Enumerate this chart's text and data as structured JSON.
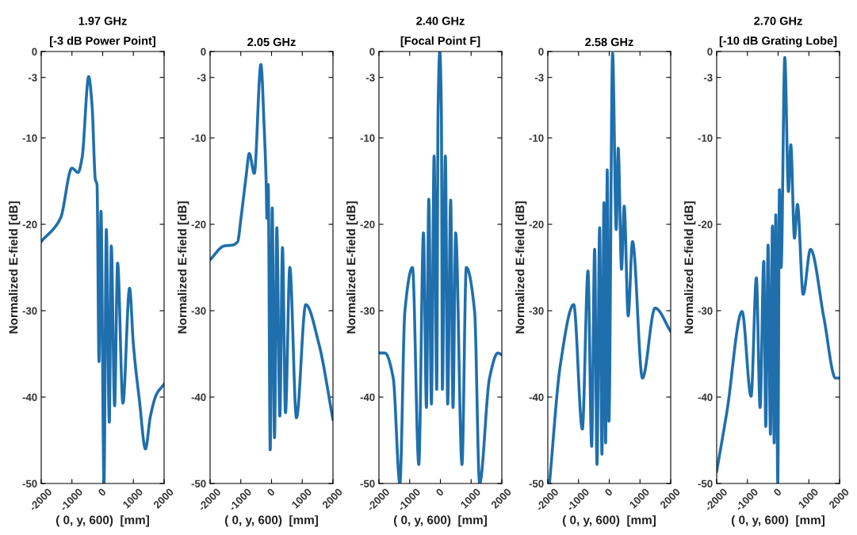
{
  "chart_data": [
    {
      "type": "line",
      "title": "1.97 GHz",
      "subtitle": "[-3 dB Power Point]",
      "xlabel": "( 0, y, 600)  [mm]",
      "ylabel": "Normalized E-field [dB]",
      "xlim": [
        -2000,
        2000
      ],
      "ylim": [
        -50,
        0
      ],
      "xticks": [
        -2000,
        -1000,
        0,
        1000,
        2000
      ],
      "yticks": [
        0,
        -3,
        -10,
        -20,
        -30,
        -40,
        -50
      ],
      "grid": false,
      "legend": false,
      "series": [
        {
          "color": "#1f6fad",
          "x": [
            -2000,
            -1373,
            -1000,
            -800,
            -670,
            -454,
            -346,
            -238,
            -184,
            -119,
            -54,
            43,
            119,
            216,
            281,
            389,
            486,
            659,
            876,
            1000,
            1200,
            1394,
            1550,
            1750,
            2000
          ],
          "values": [
            -22.0,
            -19.3,
            -13.5,
            -14.0,
            -12.3,
            -2.9,
            -6.2,
            -14.8,
            -15.4,
            -35.9,
            -18.5,
            -50,
            -20.6,
            -42.9,
            -22.5,
            -41.0,
            -24.5,
            -40.7,
            -27.4,
            -33.9,
            -40.5,
            -46.0,
            -42.3,
            -39.7,
            -38.5
          ]
        }
      ]
    },
    {
      "type": "line",
      "title": "2.05 GHz",
      "xlabel": "( 0, y, 600)  [mm]",
      "ylabel": "Normalized E-field [dB]",
      "xlim": [
        -2000,
        2000
      ],
      "ylim": [
        -50,
        0
      ],
      "xticks": [
        -2000,
        -1000,
        0,
        1000,
        2000
      ],
      "yticks": [
        0,
        -3,
        -10,
        -20,
        -30,
        -40,
        -50
      ],
      "grid": false,
      "legend": false,
      "series": [
        {
          "color": "#1f6fad",
          "x": [
            -2000,
            -1535,
            -1265,
            -1103,
            -995,
            -833,
            -724,
            -562,
            -346,
            -238,
            -173,
            -151,
            -108,
            -43,
            22,
            97,
            173,
            270,
            357,
            454,
            595,
            811,
            1114,
            1546,
            2000
          ],
          "values": [
            -24.1,
            -22.5,
            -22.4,
            -22.0,
            -19.3,
            -14.6,
            -11.8,
            -14.1,
            -1.5,
            -8.9,
            -15.4,
            -19.3,
            -15.4,
            -46.1,
            -18.1,
            -44.7,
            -20.4,
            -42.2,
            -22.7,
            -41.8,
            -25.0,
            -42.4,
            -29.3,
            -33.9,
            -42.6
          ]
        }
      ]
    },
    {
      "type": "line",
      "title": "2.40 GHz",
      "subtitle": "[Focal Point F]",
      "xlabel": "( 0, y, 600)  [mm]",
      "ylabel": "Normalized E-field [dB]",
      "xlim": [
        -2000,
        2000
      ],
      "ylim": [
        -50,
        0
      ],
      "xticks": [
        -2000,
        -1000,
        0,
        1000,
        2000
      ],
      "yticks": [
        0,
        -3,
        -10,
        -20,
        -30,
        -40,
        -50
      ],
      "grid": false,
      "legend": false,
      "series": [
        {
          "color": "#1f6fad",
          "x": [
            -2000,
            -1805,
            -1535,
            -1319,
            -1157,
            -908,
            -703,
            -551,
            -454,
            -378,
            -292,
            -205,
            -119,
            -76,
            -20,
            32,
            65,
            162,
            238,
            335,
            411,
            497,
            703,
            843,
            1114,
            1276,
            1600,
            1870,
            2000
          ],
          "values": [
            -34.9,
            -34.9,
            -37.8,
            -50,
            -30.1,
            -25.0,
            -47.8,
            -21.0,
            -41.2,
            -17.1,
            -40.8,
            -12.1,
            -39.1,
            -6.9,
            0,
            -6.9,
            -39.1,
            -12.1,
            -40.8,
            -17.2,
            -41.2,
            -21.0,
            -47.8,
            -25.0,
            -30.1,
            -50,
            -37.8,
            -34.9,
            -35.1
          ]
        }
      ]
    },
    {
      "type": "line",
      "title": "2.58 GHz",
      "xlabel": "( 0, y, 600)  [mm]",
      "ylabel": "Normalized E-field [dB]",
      "xlim": [
        -2000,
        2000
      ],
      "ylim": [
        -50,
        0
      ],
      "xticks": [
        -2000,
        -1000,
        0,
        1000,
        2000
      ],
      "yticks": [
        0,
        -3,
        -10,
        -20,
        -30,
        -40,
        -50
      ],
      "grid": false,
      "legend": false,
      "series": [
        {
          "color": "#1f6fad",
          "x": [
            -1946,
            -1589,
            -1157,
            -876,
            -692,
            -573,
            -476,
            -400,
            -313,
            -238,
            -173,
            -119,
            -65,
            -11,
            108,
            227,
            292,
            400,
            486,
            616,
            757,
            1081,
            1492,
            2000
          ],
          "values": [
            -50,
            -36.2,
            -29.3,
            -43.7,
            -25.4,
            -45.7,
            -22.9,
            -47.8,
            -20.4,
            -46.6,
            -17.5,
            -45.3,
            -13.7,
            -42.8,
            -0.2,
            -20.6,
            -11.2,
            -25.2,
            -17.9,
            -30.6,
            -22.0,
            -37.8,
            -29.7,
            -32.4
          ]
        }
      ]
    },
    {
      "type": "line",
      "title": "2.70 GHz",
      "subtitle": "[-10 dB Grating Lobe]",
      "xlabel": "( 0, y, 600)  [mm]",
      "ylabel": "Normalized E-field [dB]",
      "xlim": [
        -2000,
        2000
      ],
      "ylim": [
        -50,
        0
      ],
      "xticks": [
        -2000,
        -1000,
        0,
        1000,
        2000
      ],
      "yticks": [
        0,
        -3,
        -10,
        -20,
        -30,
        -40,
        -50
      ],
      "grid": false,
      "legend": false,
      "series": [
        {
          "color": "#1f6fad",
          "x": [
            -2000,
            -1663,
            -1174,
            -880,
            -707,
            -587,
            -467,
            -402,
            -326,
            -250,
            -185,
            -130,
            -76,
            -11,
            43,
            98,
            217,
            337,
            413,
            533,
            630,
            815,
            1054,
            1489,
            1870,
            2000
          ],
          "values": [
            -48.6,
            -41.6,
            -30.1,
            -39.9,
            -26.2,
            -41.2,
            -24.3,
            -43.4,
            -22.4,
            -44.3,
            -20.2,
            -45.3,
            -18.9,
            -50,
            -16.0,
            -25.0,
            -0.7,
            -16.2,
            -10.8,
            -21.6,
            -17.7,
            -28.1,
            -22.9,
            -30.8,
            -37.8,
            -37.8
          ]
        }
      ]
    }
  ]
}
